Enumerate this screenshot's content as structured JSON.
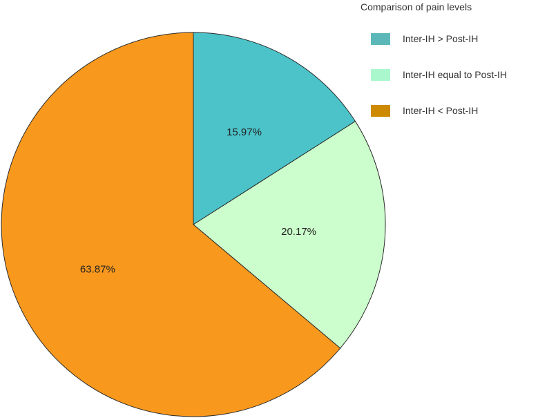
{
  "chart_data": {
    "type": "pie",
    "categories": [
      "Inter-IH > Post-IH",
      "Inter-IH equal to Post-IH",
      "Inter-IH < Post-IH"
    ],
    "values": [
      15.97,
      20.17,
      63.87
    ],
    "data_labels": [
      "15.97%",
      "20.17%",
      "63.87%"
    ],
    "colors": [
      "#4bc3c9",
      "#ccfdcc",
      "#f8981d"
    ],
    "legend_colors": [
      "#5cb8b8",
      "#aaf7cd",
      "#cd8a00"
    ],
    "legend_title": "Comparison of pain levels",
    "legend_position": "top-right",
    "start_angle": "12 o'clock",
    "direction": "clockwise"
  }
}
